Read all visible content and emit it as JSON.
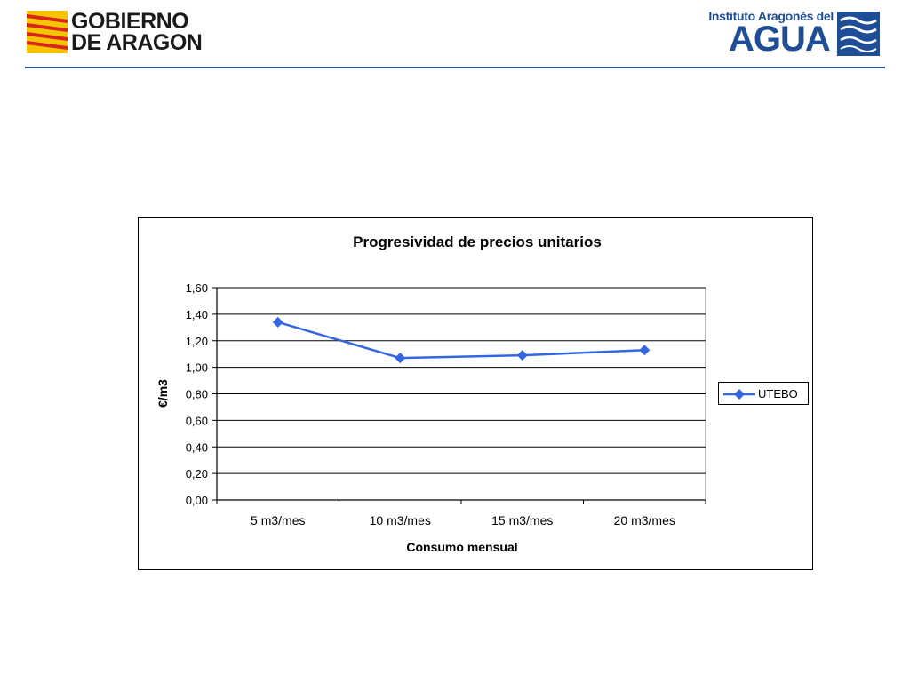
{
  "header": {
    "gobierno_line1": "GOBIERNO",
    "gobierno_line2": "DE ARAGON",
    "instituto_top": "Instituto Aragonés del",
    "instituto_main": "AGUA",
    "rule_color": "#2a4f9b"
  },
  "chart_data": {
    "type": "line",
    "title": "Progresividad de precios unitarios",
    "xlabel": "Consumo mensual",
    "ylabel": "€/m3",
    "categories": [
      "5 m3/mes",
      "10 m3/mes",
      "15 m3/mes",
      "20 m3/mes"
    ],
    "series": [
      {
        "name": "UTEBO",
        "values": [
          1.34,
          1.07,
          1.09,
          1.13
        ],
        "color": "#3366e0",
        "marker": "diamond"
      }
    ],
    "ylim": [
      0,
      1.6
    ],
    "yticks": [
      "0,00",
      "0,20",
      "0,40",
      "0,60",
      "0,80",
      "1,00",
      "1,20",
      "1,40",
      "1,60"
    ],
    "grid": true,
    "legend_position": "right"
  }
}
